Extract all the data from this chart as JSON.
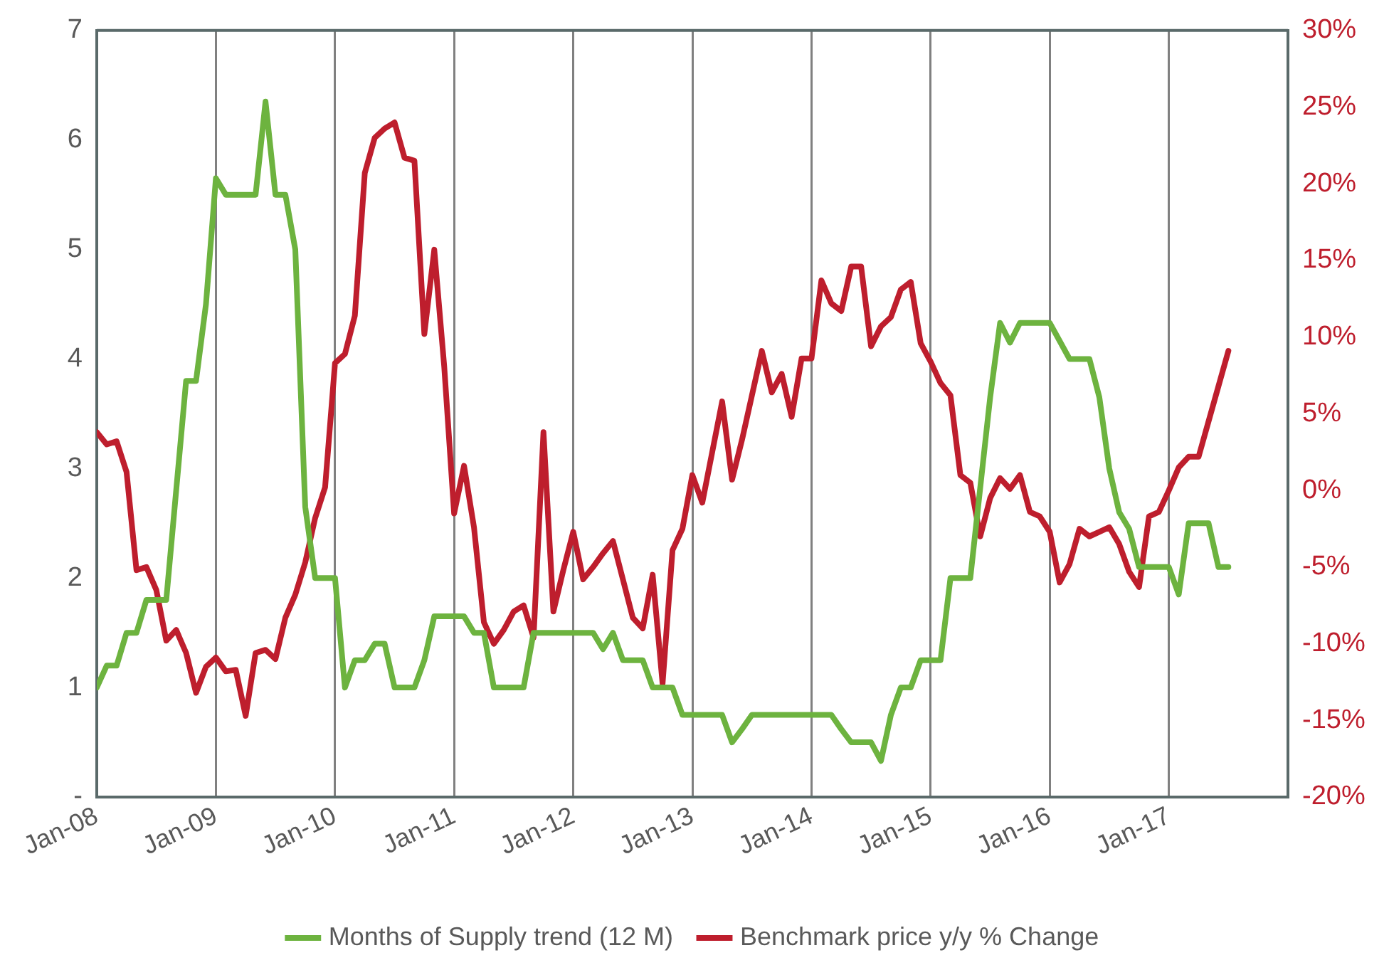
{
  "chart_data": {
    "type": "line",
    "xlim": [
      "2008-01",
      "2018-01"
    ],
    "xticks": [
      {
        "value": "2008-01",
        "label": "Jan-08"
      },
      {
        "value": "2009-01",
        "label": "Jan-09"
      },
      {
        "value": "2010-01",
        "label": "Jan-10"
      },
      {
        "value": "2011-01",
        "label": "Jan-11"
      },
      {
        "value": "2012-01",
        "label": "Jan-12"
      },
      {
        "value": "2013-01",
        "label": "Jan-13"
      },
      {
        "value": "2014-01",
        "label": "Jan-14"
      },
      {
        "value": "2015-01",
        "label": "Jan-15"
      },
      {
        "value": "2016-01",
        "label": "Jan-16"
      },
      {
        "value": "2017-01",
        "label": "Jan-17"
      }
    ],
    "ylim": [
      0,
      7
    ],
    "yticks": [
      {
        "value": 0,
        "label": "-"
      },
      1,
      2,
      3,
      4,
      5,
      6,
      7
    ],
    "y2lim": [
      -20,
      30
    ],
    "y2ticks": [
      {
        "value": -20,
        "label": "-20%"
      },
      {
        "value": -15,
        "label": "-15%"
      },
      {
        "value": -10,
        "label": "-10%"
      },
      {
        "value": -5,
        "label": "-5%"
      },
      {
        "value": 0,
        "label": "0%"
      },
      {
        "value": 5,
        "label": "5%"
      },
      {
        "value": 10,
        "label": "10%"
      },
      {
        "value": 15,
        "label": "15%"
      },
      {
        "value": 20,
        "label": "20%"
      },
      {
        "value": 25,
        "label": "25%"
      },
      {
        "value": 30,
        "label": "30%"
      }
    ],
    "grid": "x",
    "legend": "bottom",
    "marker": "none",
    "line_style": "solid",
    "series": [
      {
        "name": "Months of Supply trend (12 M)",
        "color": "#6db33f",
        "x": [
          "2008-01",
          "2008-02",
          "2008-03",
          "2008-04",
          "2008-05",
          "2008-06",
          "2008-08",
          "2008-10",
          "2008-11",
          "2008-12",
          "2009-01",
          "2009-02",
          "2009-05",
          "2009-06",
          "2009-07",
          "2009-08",
          "2009-09",
          "2009-10",
          "2009-11",
          "2010-01",
          "2010-02",
          "2010-03",
          "2010-04",
          "2010-05",
          "2010-06",
          "2010-07",
          "2010-09",
          "2010-10",
          "2010-11",
          "2011-02",
          "2011-03",
          "2011-04",
          "2011-05",
          "2011-08",
          "2011-09",
          "2012-03",
          "2012-04",
          "2012-05",
          "2012-06",
          "2012-08",
          "2012-09",
          "2012-11",
          "2012-12",
          "2013-04",
          "2013-05",
          "2013-06",
          "2013-07",
          "2014-03",
          "2014-04",
          "2014-05",
          "2014-07",
          "2014-08",
          "2014-09",
          "2014-10",
          "2014-11",
          "2014-12",
          "2015-02",
          "2015-03",
          "2015-05",
          "2015-07",
          "2015-08",
          "2015-09",
          "2015-10",
          "2016-01",
          "2016-03",
          "2016-05",
          "2016-06",
          "2016-07",
          "2016-08",
          "2016-09",
          "2016-10",
          "2017-01",
          "2017-02",
          "2017-03",
          "2017-05",
          "2017-06",
          "2017-07"
        ],
        "values": [
          1.0,
          1.2,
          1.2,
          1.5,
          1.5,
          1.8,
          1.8,
          3.8,
          3.8,
          4.5,
          5.65,
          5.5,
          5.5,
          6.35,
          5.5,
          5.5,
          5.0,
          2.65,
          2.0,
          2.0,
          1.0,
          1.25,
          1.25,
          1.4,
          1.4,
          1.0,
          1.0,
          1.25,
          1.65,
          1.65,
          1.5,
          1.5,
          1.0,
          1.0,
          1.5,
          1.5,
          1.35,
          1.5,
          1.25,
          1.25,
          1.0,
          1.0,
          0.75,
          0.75,
          0.5,
          0.62,
          0.75,
          0.75,
          0.62,
          0.5,
          0.5,
          0.33,
          0.75,
          1.0,
          1.0,
          1.25,
          1.25,
          2.0,
          2.0,
          3.65,
          4.33,
          4.15,
          4.33,
          4.33,
          4.0,
          4.0,
          3.65,
          3.0,
          2.6,
          2.45,
          2.1,
          2.1,
          1.85,
          2.5,
          2.5,
          2.1,
          2.1
        ]
      },
      {
        "name": "Benchmark price y/y % Change",
        "color": "#be1e2d",
        "axis": "y2",
        "x": [
          "2008-01",
          "2008-02",
          "2008-03",
          "2008-04",
          "2008-05",
          "2008-06",
          "2008-07",
          "2008-08",
          "2008-09",
          "2008-10",
          "2008-11",
          "2008-12",
          "2009-01",
          "2009-02",
          "2009-03",
          "2009-04",
          "2009-05",
          "2009-06",
          "2009-07",
          "2009-08",
          "2009-09",
          "2009-10",
          "2009-11",
          "2009-12",
          "2010-01",
          "2010-02",
          "2010-03",
          "2010-04",
          "2010-05",
          "2010-06",
          "2010-07",
          "2010-08",
          "2010-09",
          "2010-10",
          "2010-11",
          "2010-12",
          "2011-01",
          "2011-02",
          "2011-03",
          "2011-04",
          "2011-05",
          "2011-06",
          "2011-07",
          "2011-08",
          "2011-09",
          "2011-10",
          "2011-11",
          "2011-12",
          "2012-01",
          "2012-02",
          "2012-03",
          "2012-04",
          "2012-05",
          "2012-06",
          "2012-07",
          "2012-08",
          "2012-09",
          "2012-10",
          "2012-11",
          "2012-12",
          "2013-01",
          "2013-02",
          "2013-03",
          "2013-04",
          "2013-05",
          "2013-06",
          "2013-07",
          "2013-08",
          "2013-09",
          "2013-10",
          "2013-11",
          "2013-12",
          "2014-01",
          "2014-02",
          "2014-03",
          "2014-04",
          "2014-05",
          "2014-06",
          "2014-07",
          "2014-08",
          "2014-09",
          "2014-10",
          "2014-11",
          "2014-12",
          "2015-01",
          "2015-02",
          "2015-03",
          "2015-04",
          "2015-05",
          "2015-06",
          "2015-07",
          "2015-08",
          "2015-09",
          "2015-10",
          "2015-11",
          "2015-12",
          "2016-01",
          "2016-02",
          "2016-03",
          "2016-04",
          "2016-05",
          "2016-06",
          "2016-07",
          "2016-08",
          "2016-09",
          "2016-10",
          "2016-11",
          "2016-12",
          "2017-01",
          "2017-02",
          "2017-03",
          "2017-04",
          "2017-05",
          "2017-06",
          "2017-07"
        ],
        "values": [
          3.8,
          3.0,
          3.2,
          1.2,
          -5.2,
          -5.0,
          -6.5,
          -9.8,
          -9.1,
          -10.6,
          -13.2,
          -11.5,
          -10.9,
          -11.8,
          -11.7,
          -14.7,
          -10.6,
          -10.4,
          -11.0,
          -8.3,
          -6.8,
          -4.7,
          -1.8,
          0.2,
          8.3,
          8.9,
          11.4,
          20.7,
          23.0,
          23.6,
          24.0,
          21.7,
          21.5,
          10.2,
          15.7,
          8.1,
          -1.5,
          1.6,
          -2.4,
          -8.6,
          -10.0,
          -9.1,
          -7.9,
          -7.5,
          -9.6,
          3.8,
          -7.9,
          -5.2,
          -2.7,
          -5.8,
          -5.0,
          -4.1,
          -3.3,
          -5.8,
          -8.3,
          -9.0,
          -5.5,
          -12.6,
          -3.9,
          -2.5,
          1.0,
          -0.8,
          2.5,
          5.8,
          0.7,
          3.3,
          6.2,
          9.1,
          6.4,
          7.6,
          4.8,
          8.6,
          8.6,
          13.7,
          12.2,
          11.7,
          14.6,
          14.6,
          9.4,
          10.7,
          11.3,
          13.1,
          13.6,
          9.6,
          8.4,
          7.0,
          6.2,
          1.0,
          0.5,
          -3.0,
          -0.5,
          0.8,
          0.1,
          1.0,
          -1.4,
          -1.7,
          -2.7,
          -6.0,
          -4.8,
          -2.5,
          -3.0,
          -2.7,
          -2.4,
          -3.5,
          -5.3,
          -6.3,
          -1.7,
          -1.4,
          0.0,
          1.5,
          2.2,
          2.2,
          4.5,
          6.8,
          9.1
        ]
      }
    ]
  }
}
